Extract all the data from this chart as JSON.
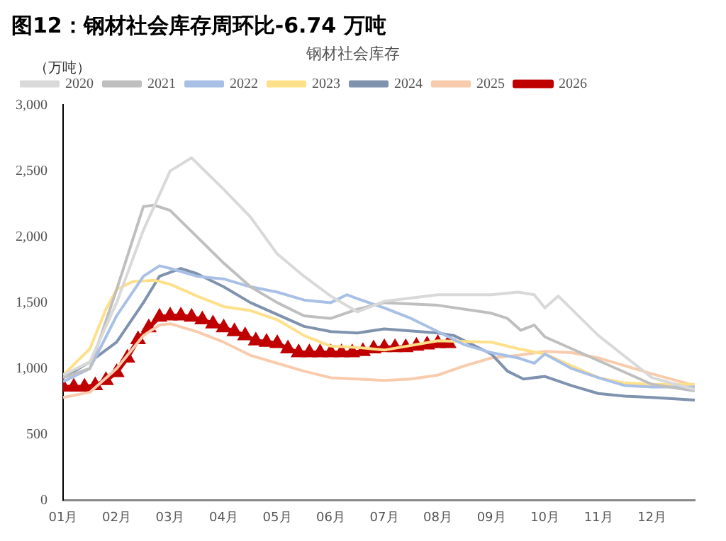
{
  "chart_data": {
    "type": "line",
    "title": "图12：钢材社会库存周环比-6.74 万吨",
    "subtitle": "钢材社会库存",
    "ylabel": "（万吨）",
    "xlim": [
      1,
      12.8
    ],
    "xticks": [
      {
        "value": 1,
        "label": "01月"
      },
      {
        "value": 2,
        "label": "02月"
      },
      {
        "value": 3,
        "label": "03月"
      },
      {
        "value": 4,
        "label": "04月"
      },
      {
        "value": 5,
        "label": "05月"
      },
      {
        "value": 6,
        "label": "06月"
      },
      {
        "value": 7,
        "label": "07月"
      },
      {
        "value": 8,
        "label": "08月"
      },
      {
        "value": 9,
        "label": "09月"
      },
      {
        "value": 10,
        "label": "10月"
      },
      {
        "value": 11,
        "label": "11月"
      },
      {
        "value": 12,
        "label": "12月"
      }
    ],
    "ylim": [
      0,
      3000
    ],
    "yticks": [
      0,
      500,
      {
        "value": 1000,
        "label": "1,000"
      },
      {
        "value": 1500,
        "label": "1,500"
      },
      {
        "value": 2000,
        "label": "2,000"
      },
      {
        "value": 2500,
        "label": "2,500"
      },
      {
        "value": 3000,
        "label": "3,000"
      }
    ],
    "grid": false,
    "legend": "top left",
    "marker": "none",
    "line_style": "solid",
    "series": [
      {
        "name": "2020",
        "color": "#d9d9d9",
        "x": [
          1,
          1.5,
          2,
          2.5,
          3,
          3.4,
          4,
          4.5,
          5,
          5.5,
          6,
          6.5,
          7,
          8,
          9,
          9.5,
          9.8,
          10,
          10.25,
          11,
          12,
          12.8
        ],
        "values": [
          950,
          1050,
          1500,
          2050,
          2500,
          2600,
          2360,
          2150,
          1870,
          1700,
          1550,
          1430,
          1510,
          1560,
          1560,
          1580,
          1560,
          1460,
          1550,
          1250,
          930,
          840
        ]
      },
      {
        "name": "2021",
        "color": "#bfbfbf",
        "x": [
          1,
          1.5,
          2,
          2.5,
          2.7,
          3,
          3.5,
          4,
          4.5,
          5,
          5.5,
          6,
          6.5,
          7,
          8,
          9,
          9.3,
          9.55,
          9.8,
          10,
          10.5,
          11,
          11.5,
          12,
          12.8
        ],
        "values": [
          930,
          1000,
          1600,
          2230,
          2240,
          2200,
          2000,
          1800,
          1620,
          1500,
          1400,
          1380,
          1450,
          1500,
          1480,
          1420,
          1380,
          1290,
          1330,
          1240,
          1150,
          1060,
          970,
          880,
          830
        ]
      },
      {
        "name": "2022",
        "color": "#a9c0e6",
        "x": [
          1,
          1.5,
          2,
          2.5,
          2.8,
          3,
          3.5,
          4,
          4.5,
          5,
          5.5,
          6,
          6.3,
          6.5,
          7,
          7.5,
          8,
          8.5,
          9,
          9.5,
          9.8,
          10,
          10.5,
          11,
          11.5,
          12,
          12.8
        ],
        "values": [
          900,
          1000,
          1400,
          1700,
          1780,
          1760,
          1700,
          1680,
          1620,
          1580,
          1520,
          1500,
          1560,
          1530,
          1460,
          1380,
          1280,
          1180,
          1120,
          1080,
          1040,
          1110,
          1000,
          930,
          870,
          860,
          860
        ]
      },
      {
        "name": "2023",
        "color": "#ffe08a",
        "x": [
          1,
          1.5,
          1.8,
          2,
          2.3,
          2.7,
          3,
          3.5,
          4,
          4.5,
          5,
          5.5,
          6,
          6.5,
          7,
          8,
          9,
          9.5,
          10,
          10.5,
          11,
          11.5,
          12,
          12.8
        ],
        "values": [
          950,
          1150,
          1450,
          1600,
          1660,
          1670,
          1640,
          1550,
          1470,
          1440,
          1370,
          1250,
          1170,
          1160,
          1140,
          1210,
          1200,
          1150,
          1110,
          1020,
          930,
          890,
          880,
          880
        ]
      },
      {
        "name": "2024",
        "color": "#7f92ae",
        "x": [
          1,
          1.5,
          2,
          2.5,
          2.8,
          3.2,
          3.5,
          4,
          4.5,
          5,
          5.5,
          6,
          6.5,
          7,
          8,
          8.3,
          9,
          9.3,
          9.6,
          10,
          10.5,
          11,
          11.5,
          12,
          12.8
        ],
        "values": [
          930,
          1050,
          1200,
          1500,
          1700,
          1760,
          1720,
          1620,
          1500,
          1410,
          1320,
          1280,
          1270,
          1300,
          1270,
          1250,
          1110,
          980,
          920,
          940,
          870,
          810,
          790,
          780,
          760
        ]
      },
      {
        "name": "2025",
        "color": "#f8cbad",
        "x": [
          1,
          1.5,
          2,
          2.5,
          2.8,
          3,
          3.5,
          4,
          4.5,
          5,
          5.5,
          6,
          6.5,
          7,
          7.5,
          8,
          8.5,
          9,
          9.5,
          10,
          10.5,
          11,
          11.5,
          12,
          12.8
        ],
        "values": [
          780,
          820,
          1000,
          1250,
          1330,
          1340,
          1280,
          1200,
          1100,
          1040,
          980,
          930,
          920,
          910,
          920,
          950,
          1020,
          1080,
          1100,
          1130,
          1120,
          1080,
          1020,
          960,
          870
        ]
      },
      {
        "name": "2026",
        "color": "#c00000",
        "marker": "triangle",
        "x": [
          1,
          1.2,
          1.4,
          1.6,
          1.8,
          2,
          2.2,
          2.4,
          2.6,
          2.8,
          3,
          3.2,
          3.4,
          3.6,
          3.8,
          4,
          4.2,
          4.4,
          4.6,
          4.8,
          5,
          5.2,
          5.4,
          5.6,
          5.8,
          6,
          6.2,
          6.4,
          6.6,
          6.8,
          7,
          7.2,
          7.4,
          7.6,
          7.8,
          8,
          8.2
        ],
        "values": [
          860,
          860,
          860,
          870,
          910,
          970,
          1080,
          1220,
          1310,
          1390,
          1400,
          1400,
          1390,
          1370,
          1340,
          1310,
          1280,
          1250,
          1210,
          1200,
          1190,
          1150,
          1120,
          1120,
          1120,
          1120,
          1120,
          1120,
          1130,
          1150,
          1160,
          1160,
          1160,
          1170,
          1180,
          1190,
          1190
        ]
      }
    ]
  }
}
